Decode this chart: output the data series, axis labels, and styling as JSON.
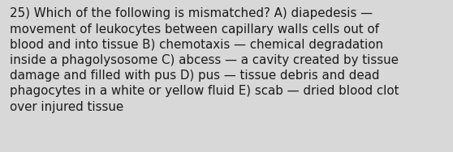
{
  "text": "25) Which of the following is mismatched? A) diapedesis —\nmovement of leukocytes between capillary walls cells out of\nblood and into tissue B) chemotaxis — chemical degradation\ninside a phagolysosome C) abcess — a cavity created by tissue\ndamage and filled with pus D) pus — tissue debris and dead\nphagocytes in a white or yellow fluid E) scab — dried blood clot\nover injured tissue",
  "background_color": "#d8d8d8",
  "text_color": "#1a1a1a",
  "font_size": 10.8,
  "fig_width": 5.58,
  "fig_height": 1.88,
  "dpi": 100
}
